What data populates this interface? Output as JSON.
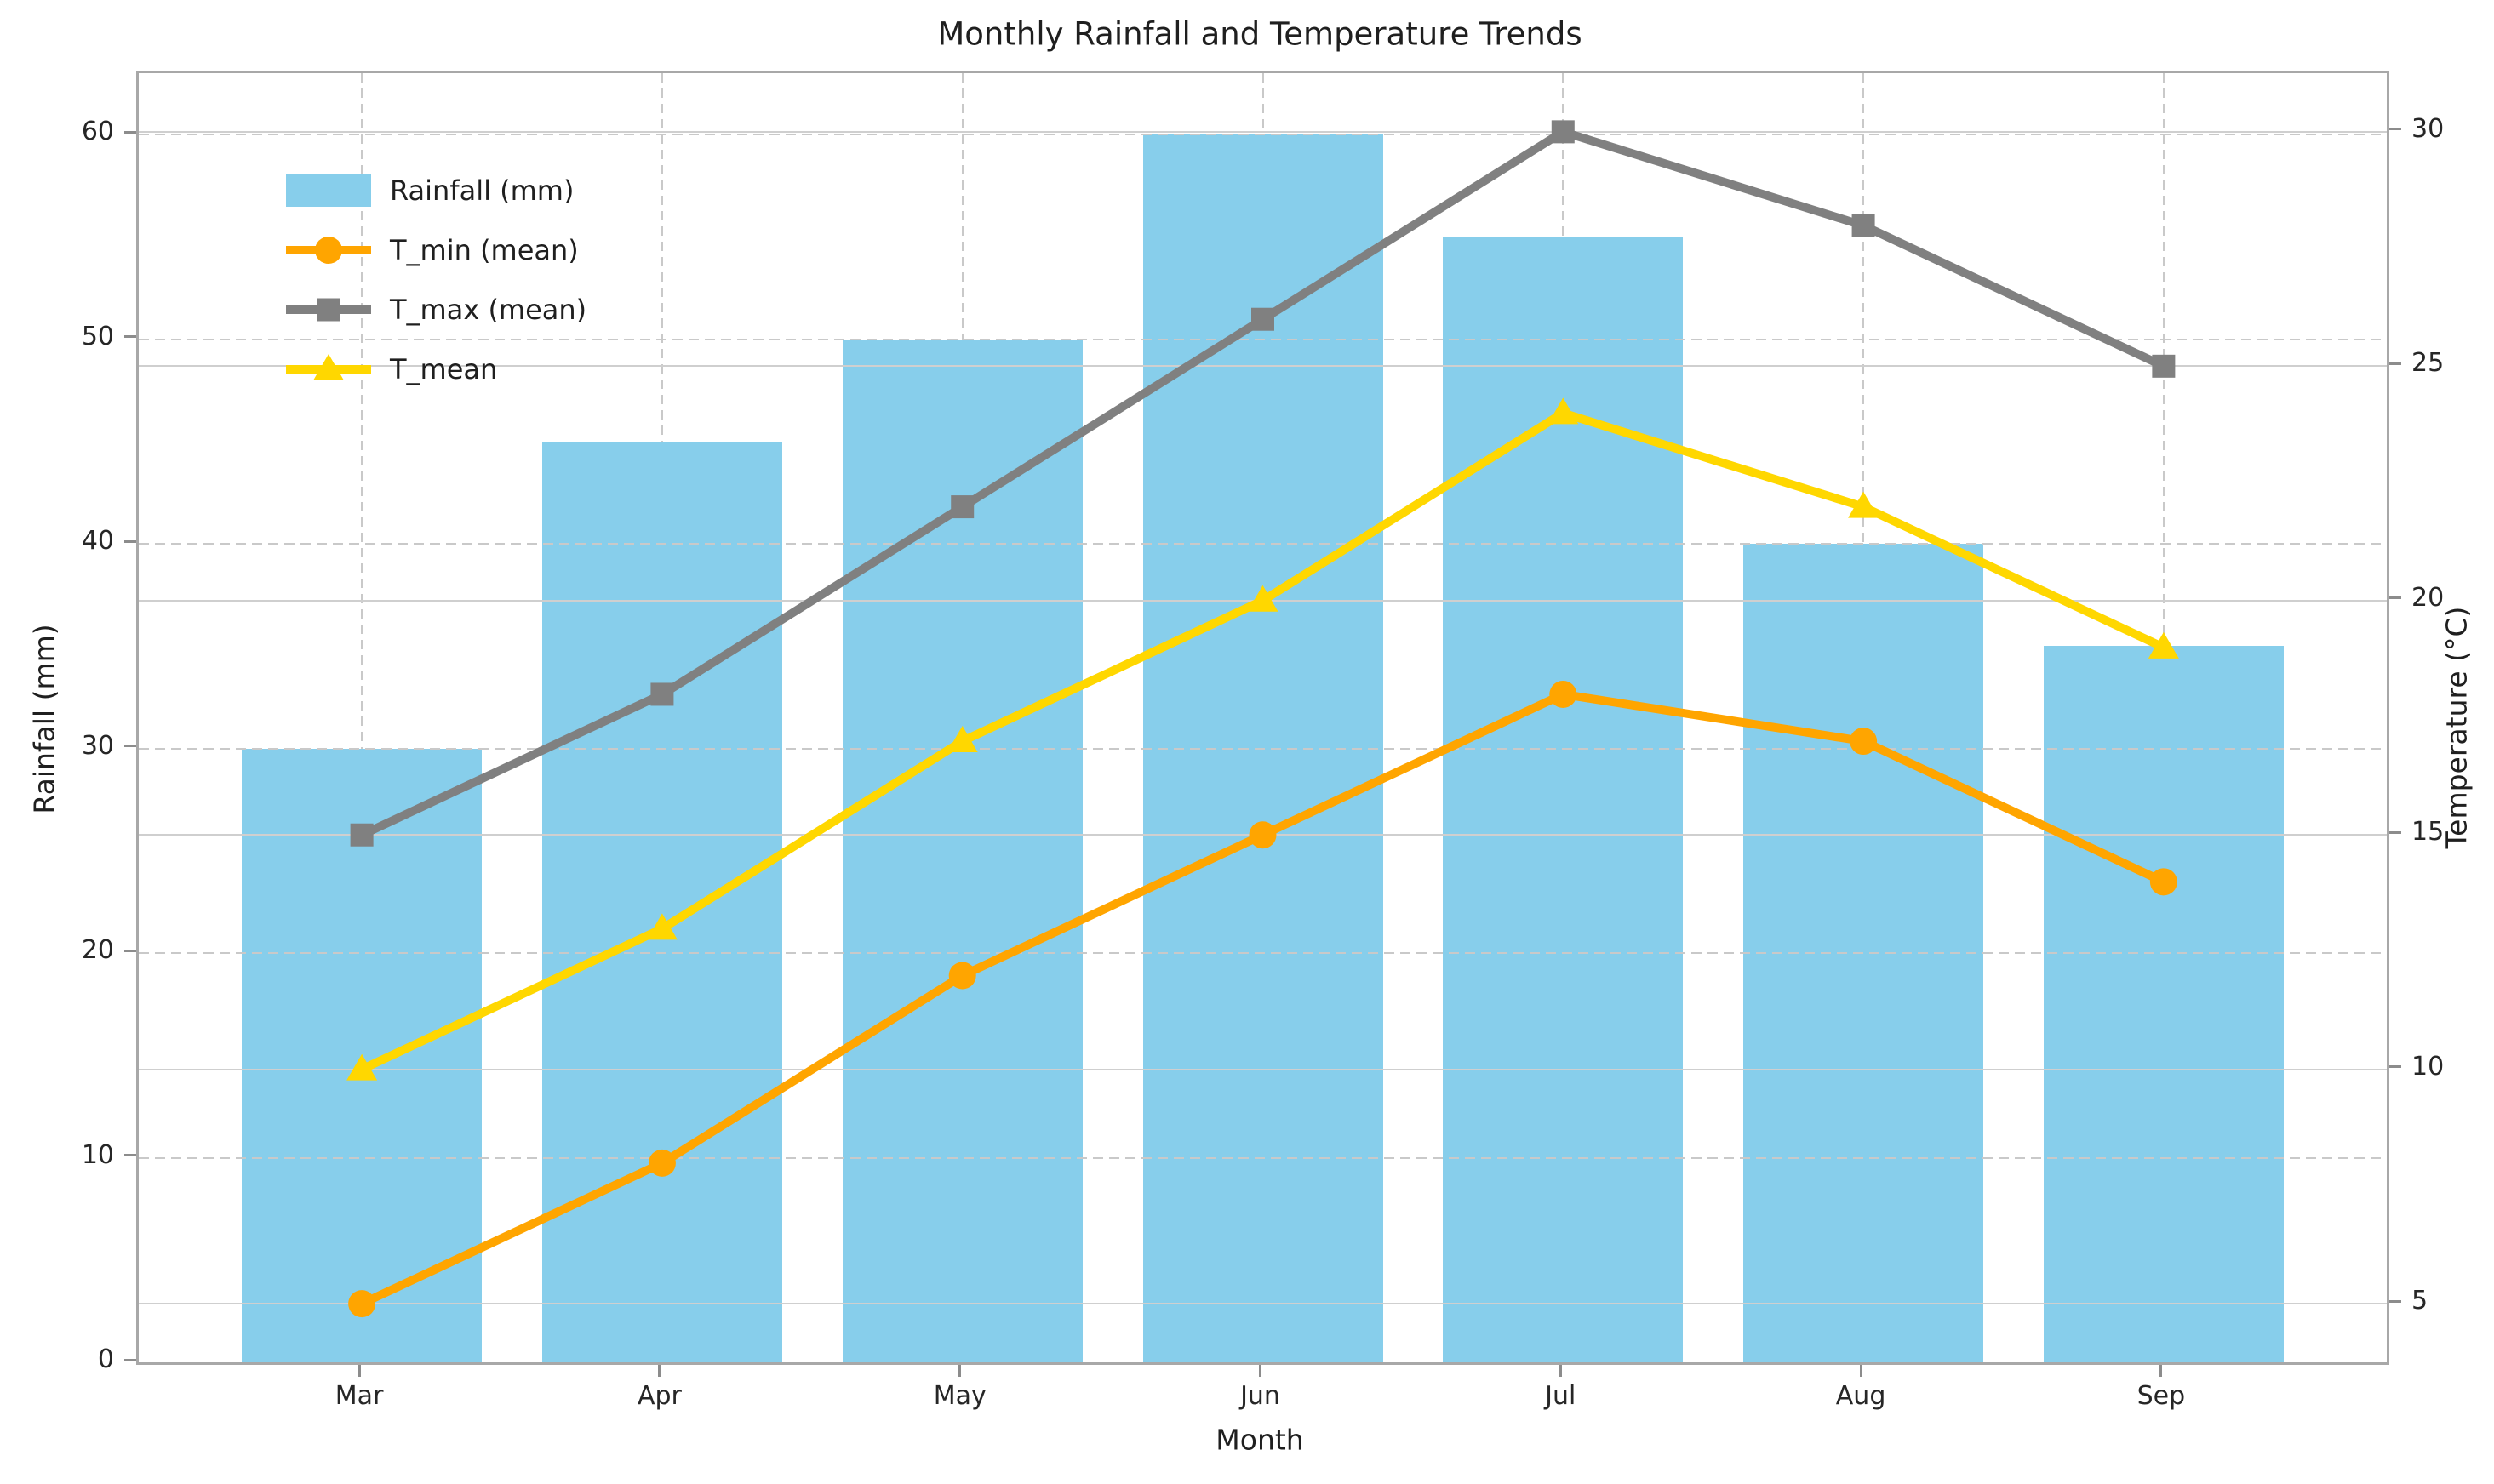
{
  "chart_data": {
    "type": "combo-bar-line",
    "title": "Monthly Rainfall and Temperature Trends",
    "xlabel": "Month",
    "ylabel_left": "Rainfall (mm)",
    "ylabel_right": "Temperature (°C)",
    "categories": [
      "Mar",
      "Apr",
      "May",
      "Jun",
      "Jul",
      "Aug",
      "Sep"
    ],
    "yticks_left": [
      0,
      10,
      20,
      30,
      40,
      50,
      60
    ],
    "yticks_right": [
      5,
      10,
      15,
      20,
      25,
      30
    ],
    "ylim_left": [
      0,
      63
    ],
    "ylim_right": [
      3.75,
      31.25
    ],
    "grid": "horizontal dashed (rainfall axis), horizontal solid (temperature axis), vertical dashed at months behind bars",
    "legend_position": "upper left, frameless",
    "series": [
      {
        "name": "Rainfall (mm)",
        "type": "bar",
        "axis": "left",
        "color": "#87CEEB",
        "marker": "rect",
        "values": [
          30,
          45,
          50,
          60,
          55,
          40,
          35
        ]
      },
      {
        "name": "T_min (mean)",
        "type": "line",
        "axis": "right",
        "color": "#FFA500",
        "marker": "circle",
        "values": [
          5,
          8,
          12,
          15,
          18,
          17,
          14
        ]
      },
      {
        "name": "T_max (mean)",
        "type": "line",
        "axis": "right",
        "color": "#808080",
        "marker": "square",
        "values": [
          15,
          18,
          22,
          26,
          30,
          28,
          25
        ]
      },
      {
        "name": "T_mean",
        "type": "line",
        "axis": "right",
        "color": "#FFD700",
        "marker": "triangle",
        "values": [
          10,
          13,
          17,
          20,
          24,
          22,
          19
        ]
      }
    ]
  }
}
